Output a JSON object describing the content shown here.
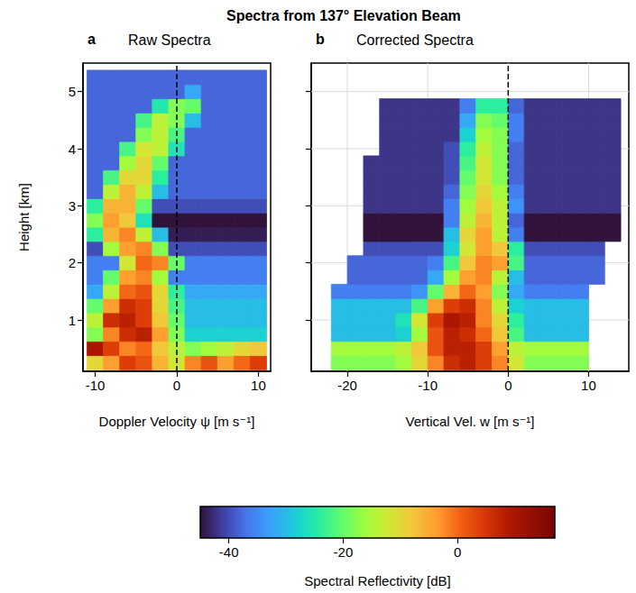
{
  "title": "Spectra from 137° Elevation Beam",
  "colorbar": {
    "label": "Spectral Reflectivity [dB]",
    "range": [
      -45,
      17
    ],
    "ticks": [
      -40,
      -20,
      0
    ]
  },
  "chart_data": [
    {
      "type": "heatmap",
      "panel": "a",
      "title": "Raw Spectra",
      "x_label": "Doppler Velocity ψ [m s⁻¹]",
      "y_label": "Height [km]",
      "xlim": [
        -11.5,
        11.5
      ],
      "xticks": [
        -10,
        0,
        10
      ],
      "ylim": [
        0.1,
        5.5
      ],
      "yticks": [
        1,
        2,
        3,
        4,
        5
      ],
      "grid": false,
      "vline": 0,
      "x": [
        -10,
        -8,
        -6,
        -4,
        -2,
        0,
        2,
        4,
        6,
        8,
        10
      ],
      "y": [
        0.25,
        0.5,
        0.75,
        1,
        1.25,
        1.5,
        1.75,
        2,
        2.25,
        2.5,
        2.75,
        3,
        3.25,
        3.5,
        3.75,
        4,
        4.25,
        4.5,
        4.75,
        5,
        5.25
      ],
      "cells": [
        [
          -10,
          -4,
          4,
          2,
          -6,
          -12,
          -2,
          2,
          -4,
          0,
          4
        ],
        [
          10,
          4,
          -2,
          0,
          -8,
          -14,
          -18,
          -16,
          -14,
          -10,
          -8
        ],
        [
          -18,
          -2,
          6,
          8,
          -4,
          -18,
          -28,
          -28,
          -28,
          -28,
          -28
        ],
        [
          -14,
          6,
          8,
          4,
          -8,
          -20,
          -30,
          -30,
          -30,
          -30,
          -30
        ],
        [
          -20,
          -4,
          6,
          4,
          -10,
          -22,
          -30,
          -30,
          -30,
          -30,
          -30
        ],
        [
          -32,
          -14,
          0,
          2,
          -10,
          -24,
          -32,
          -32,
          -32,
          -32,
          -32
        ],
        [
          -36,
          -20,
          -4,
          -2,
          -16,
          -36,
          -36,
          -36,
          -36,
          -36,
          -36
        ],
        [
          -36,
          -36,
          -12,
          0,
          -2,
          -20,
          -36,
          -36,
          -36,
          -36,
          -36
        ],
        [
          -40,
          -16,
          -4,
          -2,
          -18,
          -40,
          -40,
          -40,
          -40,
          -40,
          -40
        ],
        [
          -24,
          -6,
          -2,
          -14,
          -30,
          -44,
          -44,
          -44,
          -44,
          -44,
          -44
        ],
        [
          -18,
          -4,
          -8,
          -26,
          -45,
          -45,
          -45,
          -45,
          -45,
          -45,
          -45
        ],
        [
          -24,
          -6,
          -6,
          -20,
          -40,
          -40,
          -40,
          -40,
          -40,
          -40,
          -40
        ],
        [
          -38,
          -14,
          -6,
          -14,
          -30,
          -38,
          -38,
          -38,
          -38,
          -38,
          -38
        ],
        [
          -38,
          -22,
          -10,
          -10,
          -24,
          -38,
          -38,
          -38,
          -38,
          -38,
          -38
        ],
        [
          -38,
          -38,
          -16,
          -10,
          -20,
          -38,
          -38,
          -38,
          -38,
          -38,
          -38
        ],
        [
          -38,
          -38,
          -22,
          -12,
          -14,
          -26,
          -38,
          -38,
          -38,
          -38,
          -38
        ],
        [
          -38,
          -38,
          -38,
          -18,
          -14,
          -22,
          -38,
          -38,
          -38,
          -38,
          -38
        ],
        [
          -38,
          -38,
          -38,
          -22,
          -14,
          -18,
          -30,
          -38,
          -38,
          -38,
          -38
        ],
        [
          -38,
          -38,
          -38,
          -38,
          -25,
          -18,
          -20,
          -38,
          -38,
          -38,
          -38
        ],
        [
          -38,
          -38,
          -38,
          -38,
          -38,
          -38,
          -32,
          -38,
          -38,
          -38,
          -38
        ],
        [
          -38,
          -38,
          -38,
          -38,
          -38,
          -38,
          -38,
          -38,
          -38,
          -38,
          -38
        ]
      ]
    },
    {
      "type": "heatmap",
      "panel": "b",
      "title": "Corrected Spectra",
      "x_label": "Vertical Vel. w [m s⁻¹]",
      "xlim": [
        -24.5,
        15
      ],
      "xticks": [
        -20,
        -10,
        0,
        10
      ],
      "ylim": [
        0.1,
        5.5
      ],
      "yticks": [
        1,
        2,
        3,
        4,
        5
      ],
      "grid": true,
      "vline": 0,
      "tick_labels": "x",
      "x": [
        -23,
        -21,
        -19,
        -17,
        -15,
        -13,
        -11,
        -9,
        -7,
        -5,
        -3,
        -1,
        1,
        3,
        5,
        7,
        9,
        11,
        13
      ],
      "y": [
        0.25,
        0.5,
        0.75,
        1,
        1.25,
        1.5,
        1.75,
        2,
        2.25,
        2.5,
        2.75,
        3,
        3.25,
        3.5,
        3.75,
        4,
        4.25,
        4.5,
        4.75,
        5,
        5.25
      ],
      "cells": [
        [
          null,
          -18,
          -18,
          -18,
          -18,
          -16,
          -10,
          -2,
          6,
          8,
          4,
          -2,
          -12,
          -18,
          -18,
          -18,
          -18,
          null,
          null
        ],
        [
          null,
          -16,
          -16,
          -16,
          -16,
          -14,
          -8,
          2,
          8,
          8,
          4,
          -4,
          -14,
          -16,
          -16,
          -16,
          -16,
          null,
          null
        ],
        [
          null,
          -30,
          -30,
          -30,
          -30,
          -28,
          -16,
          2,
          8,
          6,
          0,
          -8,
          -22,
          -30,
          -30,
          -30,
          -30,
          null,
          null
        ],
        [
          null,
          -30,
          -30,
          -30,
          -30,
          -26,
          -12,
          4,
          10,
          8,
          -2,
          -10,
          -24,
          -30,
          -30,
          -30,
          -30,
          null,
          null
        ],
        [
          null,
          -30,
          -30,
          -30,
          -30,
          -30,
          -22,
          -4,
          4,
          6,
          -2,
          -14,
          -28,
          -30,
          -30,
          -30,
          -30,
          null,
          null
        ],
        [
          null,
          -36,
          -36,
          -36,
          -36,
          -36,
          -34,
          -20,
          -6,
          0,
          -4,
          -18,
          -32,
          -36,
          -36,
          -36,
          -36,
          null,
          null
        ],
        [
          null,
          null,
          -38,
          -38,
          -38,
          -38,
          -38,
          -32,
          -16,
          -4,
          -2,
          -14,
          -30,
          -38,
          -38,
          -38,
          -38,
          -38,
          null
        ],
        [
          null,
          null,
          -38,
          -38,
          -38,
          -38,
          -38,
          -36,
          -22,
          -8,
          -2,
          -4,
          -22,
          -38,
          -38,
          -38,
          -38,
          -38,
          null
        ],
        [
          null,
          null,
          null,
          -40,
          -40,
          -40,
          -40,
          -40,
          -28,
          -12,
          -4,
          -8,
          -24,
          -40,
          -40,
          -40,
          -40,
          -40,
          null
        ],
        [
          null,
          null,
          null,
          -45,
          -45,
          -45,
          -45,
          -45,
          -30,
          -10,
          -4,
          -14,
          -36,
          -45,
          -45,
          -45,
          -45,
          -45,
          -45
        ],
        [
          null,
          null,
          null,
          -45,
          -45,
          -45,
          -45,
          -45,
          -36,
          -14,
          -6,
          -14,
          -38,
          -45,
          -45,
          -45,
          -45,
          -45,
          -45
        ],
        [
          null,
          null,
          null,
          -42,
          -42,
          -42,
          -42,
          -42,
          -36,
          -16,
          -8,
          -14,
          -34,
          -42,
          -42,
          -42,
          -42,
          -42,
          -42
        ],
        [
          null,
          null,
          null,
          -42,
          -42,
          -42,
          -42,
          -42,
          -38,
          -18,
          -10,
          -16,
          -36,
          -42,
          -42,
          -42,
          -42,
          -42,
          -42
        ],
        [
          null,
          null,
          null,
          -42,
          -42,
          -42,
          -42,
          -42,
          -40,
          -20,
          -12,
          -18,
          -38,
          -42,
          -42,
          -42,
          -42,
          -42,
          -42
        ],
        [
          null,
          null,
          null,
          -42,
          -42,
          -42,
          -42,
          -42,
          -40,
          -22,
          -12,
          -18,
          -38,
          -42,
          -42,
          -42,
          -42,
          -42,
          -42
        ],
        [
          null,
          null,
          null,
          null,
          -42,
          -42,
          -42,
          -42,
          -40,
          -24,
          -14,
          -18,
          -38,
          -42,
          -42,
          -42,
          -42,
          -42,
          -42
        ],
        [
          null,
          null,
          null,
          null,
          -42,
          -42,
          -42,
          -42,
          -42,
          -28,
          -16,
          -18,
          -36,
          -42,
          -42,
          -42,
          -42,
          -42,
          -42
        ],
        [
          null,
          null,
          null,
          null,
          -42,
          -42,
          -42,
          -42,
          -42,
          -32,
          -18,
          -20,
          -36,
          -42,
          -42,
          -42,
          -42,
          -42,
          -42
        ],
        [
          null,
          null,
          null,
          null,
          -42,
          -42,
          -42,
          -42,
          -42,
          -36,
          -24,
          -24,
          -38,
          -42,
          -42,
          -42,
          -42,
          -42,
          -42
        ],
        [
          null,
          null,
          null,
          null,
          null,
          null,
          null,
          null,
          null,
          null,
          null,
          null,
          null,
          null,
          null,
          null,
          null,
          null,
          null
        ],
        [
          null,
          null,
          null,
          null,
          null,
          null,
          null,
          null,
          null,
          null,
          null,
          null,
          null,
          null,
          null,
          null,
          null,
          null,
          null
        ]
      ]
    }
  ]
}
